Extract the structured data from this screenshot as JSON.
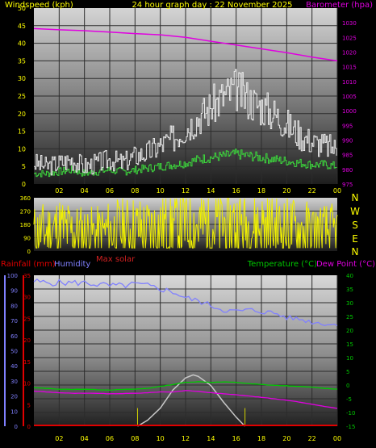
{
  "chart_data": [
    {
      "type": "line",
      "name": "wind-barometer",
      "title": "24 hour graph day : 22 November 2025",
      "ylabel_left": "Windspeed (kph)",
      "ylabel_right": "Barometer (hpa)",
      "x_ticks": [
        "02",
        "04",
        "06",
        "08",
        "10",
        "12",
        "14",
        "16",
        "18",
        "20",
        "22",
        "00"
      ],
      "xlim": [
        0,
        24
      ],
      "ylim_left": [
        0,
        50
      ],
      "ylim_right": [
        975,
        1035
      ],
      "y_ticks_left": [
        "0",
        "5",
        "10",
        "15",
        "20",
        "25",
        "30",
        "35",
        "40",
        "45",
        "50"
      ],
      "y_ticks_right": [
        "975",
        "980",
        "985",
        "990",
        "995",
        "1000",
        "1005",
        "1010",
        "1015",
        "1020",
        "1025",
        "1030"
      ],
      "colors": {
        "barometer": "#e000e0",
        "gust": "#e8e8e8",
        "average": "#3cd23c",
        "title": "#ffff00"
      },
      "series": [
        {
          "key": "barometer",
          "x": [
            0,
            2,
            4,
            6,
            8,
            10,
            12,
            14,
            16,
            18,
            20,
            22,
            24
          ],
          "values": [
            1028,
            1027.6,
            1027.3,
            1026.8,
            1026.3,
            1025.9,
            1025,
            1023.7,
            1022.4,
            1021.1,
            1019.8,
            1018.3,
            1017
          ]
        },
        {
          "key": "gust",
          "x": [
            0,
            1,
            2,
            3,
            4,
            5,
            6,
            7,
            8,
            9,
            10,
            11,
            12,
            13,
            14,
            15,
            16,
            17,
            18,
            19,
            20,
            21,
            22,
            23,
            24
          ],
          "values": [
            6,
            5,
            6,
            7,
            5,
            6,
            7,
            6,
            8,
            9,
            11,
            13,
            16,
            19,
            22,
            25,
            27,
            24,
            22,
            20,
            17,
            14,
            12,
            11,
            10
          ]
        },
        {
          "key": "average",
          "x": [
            0,
            1,
            2,
            3,
            4,
            5,
            6,
            7,
            8,
            9,
            10,
            11,
            12,
            13,
            14,
            15,
            16,
            17,
            18,
            19,
            20,
            21,
            22,
            23,
            24
          ],
          "values": [
            3,
            3,
            3.5,
            4,
            3,
            3.5,
            4,
            3.5,
            4,
            4.5,
            5,
            5.5,
            6,
            7,
            7.5,
            8,
            8.5,
            8,
            7.5,
            7,
            6.5,
            6,
            5.5,
            5.5,
            5
          ]
        }
      ]
    },
    {
      "type": "line",
      "name": "wind-direction",
      "y_ticks_left": [
        "0",
        "90",
        "180",
        "270",
        "360"
      ],
      "ylim": [
        0,
        360
      ],
      "compass_labels": [
        "N",
        "W",
        "S",
        "E",
        "N"
      ],
      "color": "#f0f000",
      "series": [
        {
          "key": "direction",
          "x": [
            0,
            1,
            2,
            3,
            4,
            5,
            6,
            7,
            8,
            9,
            10,
            11,
            12,
            13,
            14,
            15,
            16,
            17,
            18,
            19,
            20,
            21,
            22,
            23,
            24
          ],
          "values": [
            120,
            130,
            150,
            130,
            120,
            115,
            135,
            140,
            150,
            140,
            160,
            170,
            180,
            175,
            170,
            180,
            175,
            170,
            165,
            150,
            145,
            140,
            130,
            125,
            120
          ]
        }
      ]
    },
    {
      "type": "line",
      "name": "rain-humidity-temp",
      "ylabel_rain": "Rainfall (mm)",
      "ylabel_humidity": "Humidity",
      "ylabel_temperature": "Temperature (°C)",
      "ylabel_dewpoint": "Dew Point (°C)",
      "max_solar_label": "Max solar",
      "x_ticks": [
        "02",
        "04",
        "06",
        "08",
        "10",
        "12",
        "14",
        "16",
        "18",
        "20",
        "22",
        "00"
      ],
      "y_ticks_humidity": [
        "0",
        "10",
        "20",
        "30",
        "40",
        "50",
        "60",
        "70",
        "80",
        "90",
        "100"
      ],
      "y_ticks_rain": [
        "0",
        "5",
        "10",
        "15",
        "20",
        "25",
        "30",
        "35"
      ],
      "y_ticks_temp": [
        "-15",
        "-10",
        "-5",
        "0",
        "5",
        "10",
        "15",
        "20",
        "25",
        "30",
        "35",
        "40"
      ],
      "ylim_humidity": [
        0,
        100
      ],
      "ylim_temp": [
        -15,
        40
      ],
      "colors": {
        "humidity": "#8080ff",
        "temperature": "#00c800",
        "dewpoint": "#e000e0",
        "rain": "#e00000",
        "solar": "#c8c8c8",
        "sunrise": "#d0d000"
      },
      "sunrise_x": 8.2,
      "sunset_x": 16.7,
      "series": [
        {
          "key": "humidity",
          "x": [
            0,
            1,
            2,
            3,
            4,
            5,
            6,
            7,
            8,
            9,
            10,
            11,
            12,
            13,
            14,
            15,
            16,
            17,
            18,
            19,
            20,
            21,
            22,
            23,
            24
          ],
          "values": [
            96,
            95,
            95,
            95,
            95,
            94,
            93,
            93,
            94,
            93,
            91,
            89,
            85,
            83,
            80,
            77,
            76,
            77,
            76,
            75,
            72,
            71,
            69,
            68,
            67
          ]
        },
        {
          "key": "temperature",
          "x": [
            0,
            1,
            2,
            3,
            4,
            5,
            6,
            7,
            8,
            9,
            10,
            11,
            12,
            13,
            14,
            15,
            16,
            17,
            18,
            19,
            20,
            21,
            22,
            23,
            24
          ],
          "values": [
            -1,
            -1.2,
            -1.5,
            -1.6,
            -1.5,
            -1.7,
            -1.8,
            -1.6,
            -1.5,
            -1.2,
            -0.5,
            0.2,
            1,
            1.2,
            1,
            1.1,
            1,
            0.5,
            0.2,
            -0.1,
            -0.3,
            -0.5,
            -0.8,
            -1.2,
            -1.5
          ]
        },
        {
          "key": "dewpoint",
          "x": [
            0,
            1,
            2,
            3,
            4,
            5,
            6,
            7,
            8,
            9,
            10,
            11,
            12,
            13,
            14,
            15,
            16,
            17,
            18,
            19,
            20,
            21,
            22,
            23,
            24
          ],
          "values": [
            -2.2,
            -2.5,
            -2.8,
            -3,
            -3,
            -3,
            -3.2,
            -3.1,
            -3,
            -2.8,
            -2.5,
            -2.5,
            -2,
            -2.3,
            -2.8,
            -3.2,
            -3.5,
            -4,
            -4.5,
            -5,
            -5.5,
            -6.2,
            -7,
            -7.8,
            -8.5
          ]
        },
        {
          "key": "solar",
          "x": [
            8.2,
            9,
            10,
            11,
            12,
            12.6,
            13,
            14,
            15,
            16,
            16.7
          ],
          "values": [
            0,
            4,
            12,
            24,
            32,
            34,
            33,
            27,
            16,
            6,
            0
          ]
        },
        {
          "key": "rain",
          "x": [
            0,
            24
          ],
          "values": [
            0,
            0
          ]
        }
      ]
    }
  ]
}
